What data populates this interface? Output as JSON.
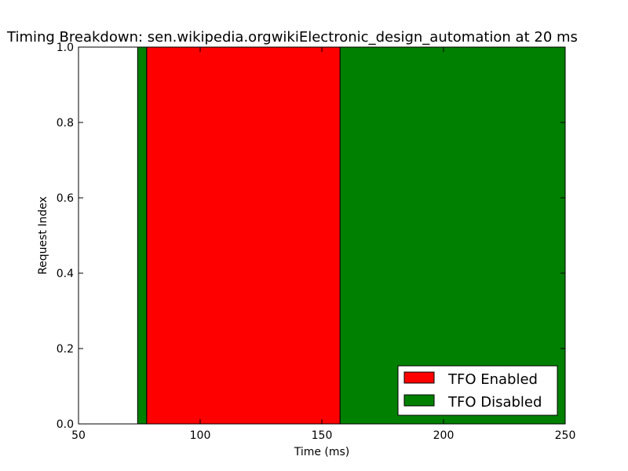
{
  "chart_data": {
    "type": "bar",
    "orientation": "horizontal-span",
    "title": "Timing Breakdown: sen.wikipedia.orgwikiElectronic_design_automation at 20 ms",
    "xlabel": "Time (ms)",
    "ylabel": "Request Index",
    "xlim": [
      50,
      250
    ],
    "ylim": [
      0,
      1
    ],
    "xticks": [
      "50",
      "100",
      "150",
      "200",
      "250"
    ],
    "yticks": [
      "0.0",
      "0.2",
      "0.4",
      "0.6",
      "0.8",
      "1.0"
    ],
    "grid": false,
    "legend_position": "lower-right",
    "series": [
      {
        "name": "TFO Enabled",
        "color": "#ff0000",
        "spans": [
          {
            "start": 78,
            "end": 157.5,
            "y0": 0,
            "y1": 1
          }
        ]
      },
      {
        "name": "TFO Disabled",
        "color": "#008000",
        "spans": [
          {
            "start": 74.3,
            "end": 78,
            "y0": 0,
            "y1": 1
          },
          {
            "start": 157.5,
            "end": 250,
            "y0": 0,
            "y1": 1
          }
        ]
      }
    ]
  }
}
